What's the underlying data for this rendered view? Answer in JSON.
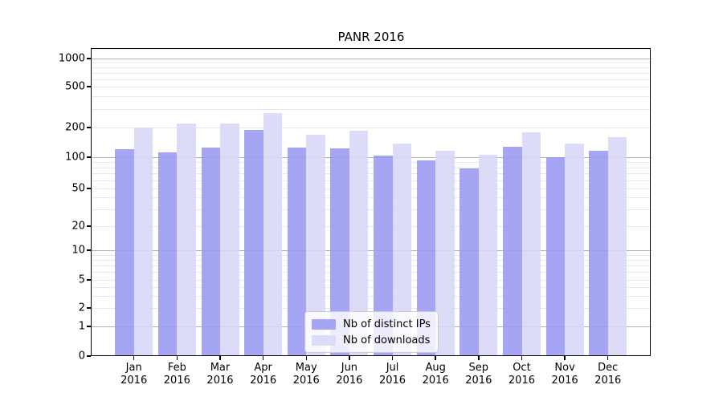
{
  "title": "PANR 2016",
  "chart_data": {
    "type": "bar",
    "categories": [
      "Jan 2016",
      "Feb 2016",
      "Mar 2016",
      "Apr 2016",
      "May 2016",
      "Jun 2016",
      "Jul 2016",
      "Aug 2016",
      "Sep 2016",
      "Oct 2016",
      "Nov 2016",
      "Dec 2016"
    ],
    "series": [
      {
        "name": "Nb of distinct IPs",
        "color": "#a5a5f3",
        "values": [
          120,
          113,
          126,
          190,
          126,
          123,
          104,
          94,
          78,
          127,
          100,
          116
        ]
      },
      {
        "name": "Nb of downloads",
        "color": "#dcdcf9",
        "values": [
          200,
          220,
          220,
          275,
          168,
          185,
          138,
          116,
          105,
          180,
          138,
          160
        ]
      }
    ],
    "yticks": [
      0,
      1,
      2,
      5,
      10,
      20,
      50,
      100,
      200,
      500,
      1000
    ],
    "xlabel": "",
    "ylabel": "",
    "ylim": [
      0,
      1250
    ],
    "scale": "log-like with linear 0-1 segment",
    "grid": "horizontal major (powers of 10, darker) and minor (2-9 per decade, light)",
    "legend_position": "lower center inside plot"
  },
  "colors": {
    "background": "#ffffff",
    "bar_distinct_ips": "#a5a5f3",
    "bar_downloads": "#dcdcf9",
    "grid_major": "#b0b0b0",
    "grid_minor": "#e8e8e8",
    "axis": "#000000",
    "legend_border": "#cccccc"
  }
}
